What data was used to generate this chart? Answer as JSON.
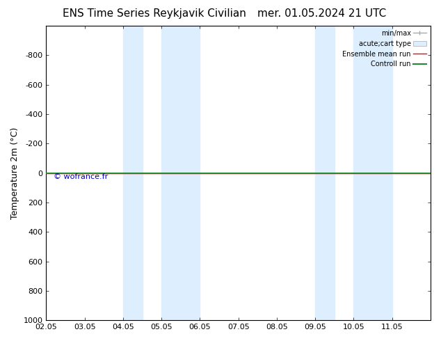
{
  "title_left": "ENS Time Series Reykjavik Civilian",
  "title_right": "mer. 01.05.2024 21 UTC",
  "ylabel": "Temperature 2m (°C)",
  "xlim": [
    0,
    10
  ],
  "ylim": [
    -1000,
    1000
  ],
  "yticks": [
    -800,
    -600,
    -400,
    -200,
    0,
    200,
    400,
    600,
    800,
    1000
  ],
  "xtick_labels": [
    "02.05",
    "03.05",
    "04.05",
    "05.05",
    "06.05",
    "07.05",
    "08.05",
    "09.05",
    "10.05",
    "11.05"
  ],
  "xtick_positions": [
    0,
    1,
    2,
    3,
    4,
    5,
    6,
    7,
    8,
    9
  ],
  "blue_bands": [
    [
      2.0,
      2.5
    ],
    [
      3.0,
      4.0
    ],
    [
      7.0,
      7.5
    ],
    [
      8.0,
      9.0
    ]
  ],
  "green_line_y": 0,
  "red_line_y": 0,
  "watermark": "© wofrance.fr",
  "watermark_color": "#0000cc",
  "background_color": "#ffffff",
  "band_color": "#ddeeff",
  "legend_items": [
    {
      "label": "min/max",
      "color": "#aaaaaa",
      "lw": 1.0,
      "style": "line"
    },
    {
      "label": "acute;cart type",
      "color": "#ccddee",
      "lw": 6,
      "style": "patch"
    },
    {
      "label": "Ensemble mean run",
      "color": "#ff0000",
      "lw": 1.0,
      "style": "line"
    },
    {
      "label": "Controll run",
      "color": "#228833",
      "lw": 1.5,
      "style": "line"
    }
  ],
  "title_fontsize": 11,
  "axis_fontsize": 9,
  "tick_fontsize": 8
}
